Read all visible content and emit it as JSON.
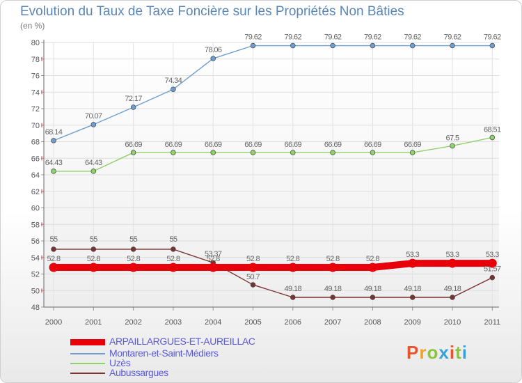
{
  "header": {
    "title": "Evolution du Taux de Taxe Foncière sur les Propriétés Non Bâties",
    "unit": "(en %)"
  },
  "logo": {
    "letters": [
      {
        "char": "P",
        "color": "#e8542e"
      },
      {
        "char": "r",
        "color": "#f0a22c"
      },
      {
        "char": "o",
        "color": "#8cc43c"
      },
      {
        "char": "x",
        "color": "#3aa0d8"
      },
      {
        "char": "i",
        "color": "#e8542e"
      },
      {
        "char": "t",
        "color": "#8cc43c"
      },
      {
        "char": "i",
        "color": "#3aa0d8"
      }
    ]
  },
  "chart_data": {
    "type": "line",
    "title": "Evolution du Taux de Taxe Foncière sur les Propriétés Non Bâties",
    "ylabel": "(en %)",
    "xlabel": "",
    "ylim": [
      48,
      80
    ],
    "yticks": [
      48,
      50,
      52,
      54,
      56,
      58,
      60,
      62,
      64,
      66,
      68,
      70,
      72,
      74,
      76,
      78,
      80
    ],
    "categories": [
      "2000",
      "2001",
      "2002",
      "2003",
      "2004",
      "2005",
      "2006",
      "2007",
      "2008",
      "2009",
      "2010",
      "2011"
    ],
    "series": [
      {
        "name": "ARPAILLARGUES-ET-AUREILLAC",
        "color": "#e8000a",
        "values": [
          52.8,
          52.8,
          52.8,
          52.8,
          52.8,
          52.8,
          52.8,
          52.8,
          52.8,
          53.3,
          53.3,
          53.3
        ],
        "labels": [
          "52.8",
          "52.8",
          "52.8",
          "52.8",
          "52.8",
          "52.8",
          "52.8",
          "52.8",
          "52.8",
          "53.3",
          "53.3",
          "53.3"
        ]
      },
      {
        "name": "Montaren-et-Saint-Médiers",
        "color": "#6e9fd0",
        "values": [
          68.14,
          70.07,
          72.17,
          74.34,
          78.06,
          79.62,
          79.62,
          79.62,
          79.62,
          79.62,
          79.62,
          79.62
        ],
        "labels": [
          "68.14",
          "70.07",
          "72.17",
          "74.34",
          "78.06",
          "79.62",
          "79.62",
          "79.62",
          "79.62",
          "79.62",
          "79.62",
          "79.62"
        ]
      },
      {
        "name": "Uzès",
        "color": "#8fd16a",
        "values": [
          64.43,
          64.43,
          66.69,
          66.69,
          66.69,
          66.69,
          66.69,
          66.69,
          66.69,
          66.69,
          67.5,
          68.51
        ],
        "labels": [
          "64.43",
          "64.43",
          "66.69",
          "66.69",
          "66.69",
          "66.69",
          "66.69",
          "66.69",
          "66.69",
          "66.69",
          "67.5",
          "68.51"
        ]
      },
      {
        "name": "Aubussargues",
        "color": "#7a3232",
        "values": [
          55,
          55,
          55,
          55,
          53.37,
          50.7,
          49.18,
          49.18,
          49.18,
          49.18,
          49.18,
          51.57
        ],
        "labels": [
          "55",
          "55",
          "55",
          "55",
          "53.37",
          "50.7",
          "49.18",
          "49.18",
          "49.18",
          "49.18",
          "49.18",
          "51.57"
        ]
      }
    ]
  }
}
